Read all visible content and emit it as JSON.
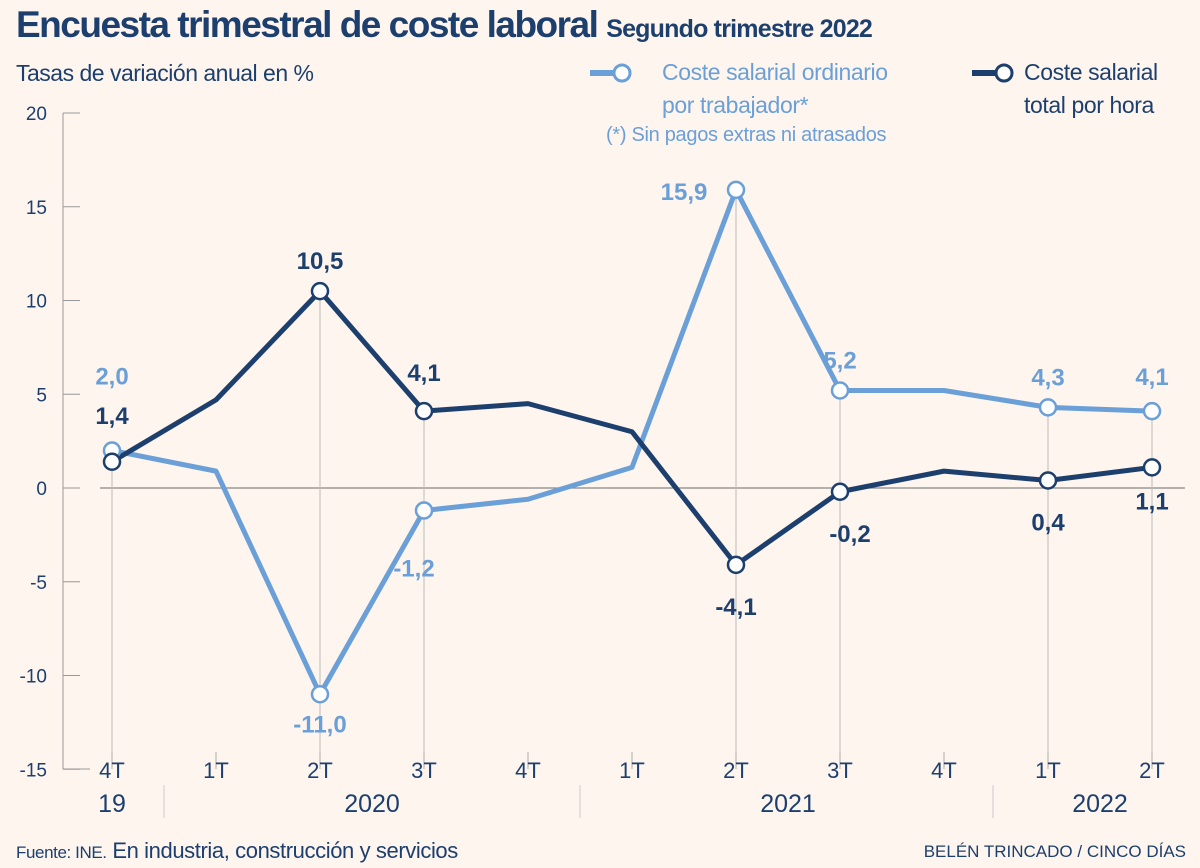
{
  "title": "Encuesta trimestral de coste laboral",
  "subtitle": "Segundo trimestre 2022",
  "unit_label": "Tasas de variación anual en %",
  "footnote": "(*) Sin pagos extras ni atrasados",
  "source_prefix": "Fuente: INE.",
  "source_text": "En industria, construcción y servicios",
  "credit": "BELÉN TRINCADO / CINCO DÍAS",
  "colors": {
    "light": "#6a9fd8",
    "dark": "#1d3f6e",
    "background": "#fdf5ee"
  },
  "chart_data": {
    "type": "line",
    "categories": [
      "4T",
      "1T",
      "2T",
      "3T",
      "4T",
      "1T",
      "2T",
      "3T",
      "4T",
      "1T",
      "2T"
    ],
    "years": [
      {
        "label": "19",
        "from": 0,
        "to": 0
      },
      {
        "label": "2020",
        "from": 1,
        "to": 4
      },
      {
        "label": "2021",
        "from": 5,
        "to": 8
      },
      {
        "label": "2022",
        "from": 9,
        "to": 10
      }
    ],
    "ylim": [
      -15,
      20
    ],
    "yticks": [
      20,
      15,
      10,
      5,
      0,
      -5,
      -10,
      -15
    ],
    "ytick_labels": [
      "20",
      "15",
      "10",
      "5",
      "0",
      "-5",
      "-10",
      "-15"
    ],
    "legend": "top-right",
    "series": [
      {
        "name": "Coste salarial ordinario por trabajador*",
        "legend_lines": [
          "Coste salarial ordinario",
          "por trabajador*"
        ],
        "color": "#6a9fd8",
        "values": [
          2.0,
          0.9,
          -11.0,
          -1.2,
          -0.6,
          1.1,
          15.9,
          5.2,
          5.2,
          4.3,
          4.1
        ],
        "labels": [
          "2,0",
          null,
          "-11,0",
          "-1,2",
          null,
          null,
          "15,9",
          "5,2",
          null,
          "4,3",
          "4,1"
        ]
      },
      {
        "name": "Coste salarial total por hora",
        "legend_lines": [
          "Coste salarial",
          "total por hora"
        ],
        "color": "#1d3f6e",
        "values": [
          1.4,
          4.7,
          10.5,
          4.1,
          4.5,
          3.0,
          -4.1,
          -0.2,
          0.9,
          0.4,
          1.1
        ],
        "labels": [
          "1,4",
          null,
          "10,5",
          "4,1",
          null,
          null,
          "-4,1",
          "-0,2",
          null,
          "0,4",
          "1,1"
        ]
      }
    ]
  }
}
